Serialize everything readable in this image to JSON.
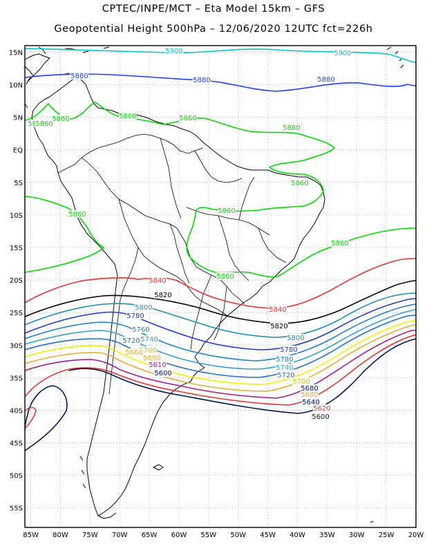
{
  "title_line1": "CPTEC/INPE/MCT –  Eta Model 15km – GFS",
  "title_line2": "Geopotential Height 500hPa – 12/06/2020 12UTC fct=226h",
  "lat_ticks": [
    "15N",
    "10N",
    "5N",
    "EQ",
    "5S",
    "10S",
    "15S",
    "20S",
    "25S",
    "30S",
    "35S",
    "40S",
    "45S",
    "50S",
    "55S"
  ],
  "lon_ticks": [
    "85W",
    "80W",
    "75W",
    "70W",
    "65W",
    "60W",
    "55W",
    "50W",
    "45W",
    "40W",
    "35W",
    "30W",
    "25W",
    "20W"
  ],
  "lon_range": [
    -86,
    -20
  ],
  "lat_range": [
    -58,
    16
  ],
  "contours": [
    {
      "value": "5900",
      "color": "#00c8c8"
    },
    {
      "value": "5880",
      "color": "#1e3cff"
    },
    {
      "value": "5860",
      "color": "#00dc00"
    },
    {
      "value": "5840",
      "color": "#e63232"
    },
    {
      "value": "5820",
      "color": "#000000"
    },
    {
      "value": "5800",
      "color": "#1e8cb4"
    },
    {
      "value": "5780",
      "color": "#1e3cc8"
    },
    {
      "value": "5760",
      "color": "#1e82c8"
    },
    {
      "value": "5740",
      "color": "#32a0c8"
    },
    {
      "value": "5720",
      "color": "#1e6ecc"
    },
    {
      "value": "5700",
      "color": "#f0f000"
    },
    {
      "value": "5680",
      "color": "#e6aa32"
    },
    {
      "value": "5640",
      "color": "#a01e8c"
    },
    {
      "value": "5620",
      "color": "#e63232"
    },
    {
      "value": "5600",
      "color": "#00145a"
    }
  ],
  "contour_labels": [
    {
      "text": "5900",
      "color": "#00c8c8"
    },
    {
      "text": "5900",
      "color": "#00c8c8"
    },
    {
      "text": "5880",
      "color": "#1e3cff"
    },
    {
      "text": "5880",
      "color": "#1e3cff"
    },
    {
      "text": "5880",
      "color": "#1e3cff"
    },
    {
      "text": "5860",
      "color": "#00dc00"
    },
    {
      "text": "5860",
      "color": "#00dc00"
    },
    {
      "text": "5860",
      "color": "#00dc00"
    },
    {
      "text": "5860",
      "color": "#00dc00"
    },
    {
      "text": "5860",
      "color": "#00dc00"
    },
    {
      "text": "5860",
      "color": "#00dc00"
    },
    {
      "text": "5860",
      "color": "#00dc00"
    },
    {
      "text": "5860",
      "color": "#00dc00"
    },
    {
      "text": "5860",
      "color": "#00dc00"
    },
    {
      "text": "5860",
      "color": "#00dc00"
    },
    {
      "text": "5860",
      "color": "#00dc00"
    },
    {
      "text": "5840",
      "color": "#e63232"
    },
    {
      "text": "5840",
      "color": "#e63232"
    },
    {
      "text": "5820",
      "color": "#000000"
    },
    {
      "text": "5820",
      "color": "#000000"
    },
    {
      "text": "5800",
      "color": "#1e8cb4"
    },
    {
      "text": "5800",
      "color": "#1e8cb4"
    },
    {
      "text": "5780",
      "color": "#1e3cc8"
    },
    {
      "text": "5780",
      "color": "#1e3cc8"
    },
    {
      "text": "5760",
      "color": "#1e82c8"
    },
    {
      "text": "5780",
      "color": "#1e82c8"
    },
    {
      "text": "5740",
      "color": "#32a0c8"
    },
    {
      "text": "5740",
      "color": "#32a0c8"
    },
    {
      "text": "5720",
      "color": "#1e6ecc"
    },
    {
      "text": "5720",
      "color": "#1e6ecc"
    },
    {
      "text": "5700",
      "color": "#c8c800"
    },
    {
      "text": "5700",
      "color": "#c8c800"
    },
    {
      "text": "5680",
      "color": "#e6aa32"
    },
    {
      "text": "5680",
      "color": "#e6aa32"
    },
    {
      "text": "5660",
      "color": "#e6aa32"
    },
    {
      "text": "5680",
      "color": "#00145a"
    },
    {
      "text": "5640",
      "color": "#00145a"
    },
    {
      "text": "5620",
      "color": "#e63232"
    },
    {
      "text": "5600",
      "color": "#00145a"
    },
    {
      "text": "5610",
      "color": "#a01e8c"
    },
    {
      "text": "5600",
      "color": "#00145a"
    }
  ]
}
